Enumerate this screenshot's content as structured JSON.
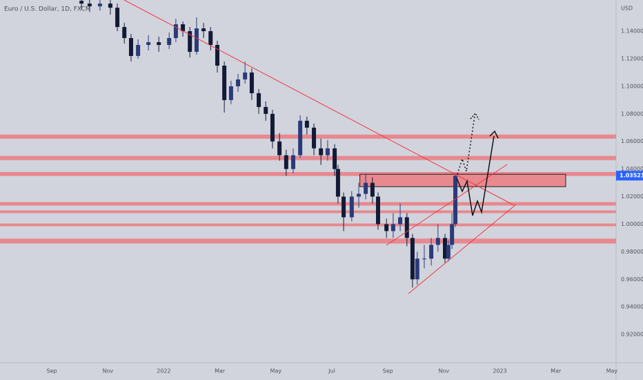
{
  "chart_data": {
    "type": "candlestick",
    "title": "Euro / U.S. Dollar, 1D, FXCM",
    "currency": "USD",
    "xlim": [
      -1.85,
      20.15
    ],
    "xticks": [
      {
        "value": 0,
        "label": "Sep"
      },
      {
        "value": 2,
        "label": "Nov"
      },
      {
        "value": 4,
        "label": "2022"
      },
      {
        "value": 6,
        "label": "Mar"
      },
      {
        "value": 8,
        "label": "May"
      },
      {
        "value": 10,
        "label": "Jul"
      },
      {
        "value": 12,
        "label": "Sep"
      },
      {
        "value": 14,
        "label": "Nov"
      },
      {
        "value": 16,
        "label": "2023"
      },
      {
        "value": 18,
        "label": "Mar"
      },
      {
        "value": 20,
        "label": "May"
      }
    ],
    "ylim": [
      0.8995,
      1.1626
    ],
    "yticks": [
      {
        "value": 0.92,
        "label": "0.92000"
      },
      {
        "value": 0.94,
        "label": "0.94000"
      },
      {
        "value": 0.96,
        "label": "0.96000"
      },
      {
        "value": 0.98,
        "label": "0.98000"
      },
      {
        "value": 1.0,
        "label": "1.00000"
      },
      {
        "value": 1.02,
        "label": "1.02000"
      },
      {
        "value": 1.04,
        "label": "1.04000"
      },
      {
        "value": 1.06,
        "label": "1.06000"
      },
      {
        "value": 1.08,
        "label": "1.08000"
      },
      {
        "value": 1.1,
        "label": "1.10000"
      },
      {
        "value": 1.12,
        "label": "1.12000"
      },
      {
        "value": 1.14,
        "label": "1.14000"
      }
    ],
    "grid": false,
    "up_color": "#2b3a78",
    "down_color": "#131a36",
    "x": [
      1.06,
      1.35,
      1.72,
      2.09,
      2.34,
      2.59,
      2.83,
      3.08,
      3.45,
      3.82,
      4.19,
      4.43,
      4.68,
      4.93,
      5.17,
      5.42,
      5.67,
      5.91,
      6.16,
      6.4,
      6.65,
      6.9,
      7.14,
      7.39,
      7.64,
      7.88,
      8.13,
      8.37,
      8.62,
      8.87,
      9.11,
      9.36,
      9.61,
      9.85,
      10.1,
      10.22,
      10.42,
      10.71,
      10.96,
      11.21,
      11.45,
      11.65,
      11.95,
      12.19,
      12.44,
      12.68,
      12.88,
      13.05,
      13.3,
      13.55,
      13.79,
      14.04,
      14.16,
      14.29,
      14.41
    ],
    "open": [
      1.162,
      1.16,
      1.158,
      1.16,
      1.157,
      1.143,
      1.135,
      1.122,
      1.13,
      1.132,
      1.13,
      1.135,
      1.145,
      1.14,
      1.125,
      1.142,
      1.14,
      1.13,
      1.115,
      1.09,
      1.1,
      1.105,
      1.11,
      1.095,
      1.085,
      1.08,
      1.06,
      1.05,
      1.04,
      1.05,
      1.075,
      1.07,
      1.055,
      1.05,
      1.055,
      1.04,
      1.02,
      1.005,
      1.02,
      1.022,
      1.03,
      1.02,
      1.0,
      0.995,
      1.0,
      1.005,
      0.99,
      0.96,
      0.975,
      0.975,
      0.985,
      0.99,
      0.975,
      0.985,
      1.0
    ],
    "high": [
      1.166,
      1.163,
      1.164,
      1.163,
      1.16,
      1.146,
      1.138,
      1.134,
      1.137,
      1.136,
      1.139,
      1.149,
      1.147,
      1.143,
      1.15,
      1.146,
      1.143,
      1.133,
      1.118,
      1.104,
      1.109,
      1.118,
      1.113,
      1.098,
      1.089,
      1.083,
      1.066,
      1.054,
      1.055,
      1.079,
      1.078,
      1.073,
      1.062,
      1.061,
      1.058,
      1.043,
      1.023,
      1.024,
      1.03,
      1.036,
      1.034,
      1.023,
      1.004,
      1.008,
      1.015,
      1.008,
      0.993,
      0.98,
      0.985,
      0.99,
      1.0,
      0.993,
      0.988,
      1.008,
      1.037
    ],
    "low": [
      1.156,
      1.154,
      1.155,
      1.152,
      1.14,
      1.131,
      1.118,
      1.12,
      1.126,
      1.125,
      1.127,
      1.132,
      1.136,
      1.121,
      1.123,
      1.135,
      1.126,
      1.11,
      1.081,
      1.087,
      1.096,
      1.102,
      1.09,
      1.08,
      1.075,
      1.055,
      1.046,
      1.035,
      1.037,
      1.048,
      1.065,
      1.05,
      1.043,
      1.046,
      1.035,
      1.015,
      0.995,
      1.002,
      1.012,
      1.018,
      1.015,
      0.996,
      0.99,
      0.99,
      0.995,
      0.984,
      0.954,
      0.956,
      0.968,
      0.97,
      0.98,
      0.972,
      0.973,
      0.982,
      0.998
    ],
    "close": [
      1.16,
      1.158,
      1.16,
      1.157,
      1.143,
      1.135,
      1.122,
      1.13,
      1.132,
      1.13,
      1.135,
      1.145,
      1.14,
      1.125,
      1.142,
      1.14,
      1.13,
      1.115,
      1.09,
      1.1,
      1.105,
      1.11,
      1.095,
      1.085,
      1.08,
      1.06,
      1.05,
      1.04,
      1.05,
      1.075,
      1.07,
      1.055,
      1.05,
      1.055,
      1.04,
      1.02,
      1.005,
      1.02,
      1.022,
      1.03,
      1.02,
      1.0,
      0.995,
      1.0,
      1.005,
      0.99,
      0.96,
      0.975,
      0.975,
      0.985,
      0.99,
      0.975,
      0.985,
      1.0,
      1.035
    ],
    "zone_color": "#e8888f",
    "zones": [
      [
        1.062,
        1.065
      ],
      [
        1.0465,
        1.0495
      ],
      [
        1.035,
        1.0378
      ],
      [
        1.0135,
        1.016
      ],
      [
        1.008,
        1.01
      ],
      [
        0.9985,
        1.0005
      ],
      [
        0.986,
        0.9895
      ]
    ],
    "box": {
      "x": [
        11.0,
        18.35
      ],
      "y": [
        1.0272,
        1.0362
      ]
    },
    "last_price": 1.03521,
    "last_price_color": "#2962ff"
  }
}
